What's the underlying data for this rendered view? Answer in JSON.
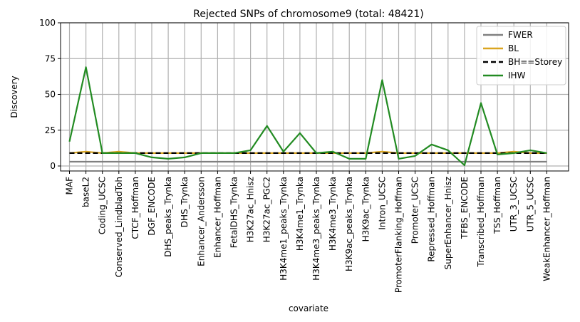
{
  "chart_data": {
    "type": "line",
    "title": "Rejected SNPs of chromosome9 (total: 48421)",
    "xlabel": "covariate",
    "ylabel": "Discovery",
    "ylim": [
      0,
      100
    ],
    "yticks": [
      0,
      25,
      50,
      75,
      100
    ],
    "grid": true,
    "legend_position": "top-right",
    "categories": [
      "MAF",
      "baseL2",
      "Coding_UCSC",
      "Conserved_LindbladToh",
      "CTCF_Hoffman",
      "DGF_ENCODE",
      "DHS_peaks_Trynka",
      "DHS_Trynka",
      "Enhancer_Andersson",
      "Enhancer_Hoffman",
      "FetalDHS_Trynka",
      "H3K27ac_Hnisz",
      "H3K27ac_PGC2",
      "H3K4me1_peaks_Trynka",
      "H3K4me1_Trynka",
      "H3K4me3_peaks_Trynka",
      "H3K4me3_Trynka",
      "H3K9ac_peaks_Trynka",
      "H3K9ac_Trynka",
      "Intron_UCSC",
      "PromoterFlanking_Hoffman",
      "Promoter_UCSC",
      "Repressed_Hoffman",
      "SuperEnhancer_Hnisz",
      "TFBS_ENCODE",
      "Transcribed_Hoffman",
      "TSS_Hoffman",
      "UTR_3_UCSC",
      "UTR_5_UCSC",
      "WeakEnhancer_Hoffman"
    ],
    "series": [
      {
        "name": "FWER",
        "color": "#808080",
        "dash": "solid",
        "values": [
          3,
          3,
          3,
          3,
          3,
          3,
          3,
          3,
          3,
          3,
          3,
          3,
          3,
          3,
          3,
          3,
          3,
          3,
          3,
          3,
          3,
          3,
          3,
          3,
          3,
          3,
          3,
          3,
          3,
          3
        ]
      },
      {
        "name": "BL",
        "color": "#daa520",
        "dash": "solid",
        "values": [
          9,
          10,
          9,
          10,
          9,
          9,
          9,
          9,
          9,
          9,
          9,
          9,
          9,
          9,
          9,
          9,
          9,
          9,
          9,
          10,
          9,
          9,
          9,
          9,
          9,
          9,
          9,
          10,
          9,
          9
        ]
      },
      {
        "name": "BH==Storey",
        "color": "#000000",
        "dash": "dashed",
        "values": [
          9,
          9,
          9,
          9,
          9,
          9,
          9,
          9,
          9,
          9,
          9,
          9,
          9,
          9,
          9,
          9,
          9,
          9,
          9,
          9,
          9,
          9,
          9,
          9,
          9,
          9,
          9,
          9,
          9,
          9
        ]
      },
      {
        "name": "IHW",
        "color": "#228b22",
        "dash": "solid",
        "values": [
          17,
          69,
          9,
          9,
          9,
          6,
          5,
          6,
          9,
          9,
          9,
          11,
          28,
          10,
          23,
          9,
          10,
          5,
          5,
          60,
          5,
          7,
          15,
          11,
          0.5,
          44,
          8,
          9,
          11,
          9
        ]
      }
    ]
  }
}
